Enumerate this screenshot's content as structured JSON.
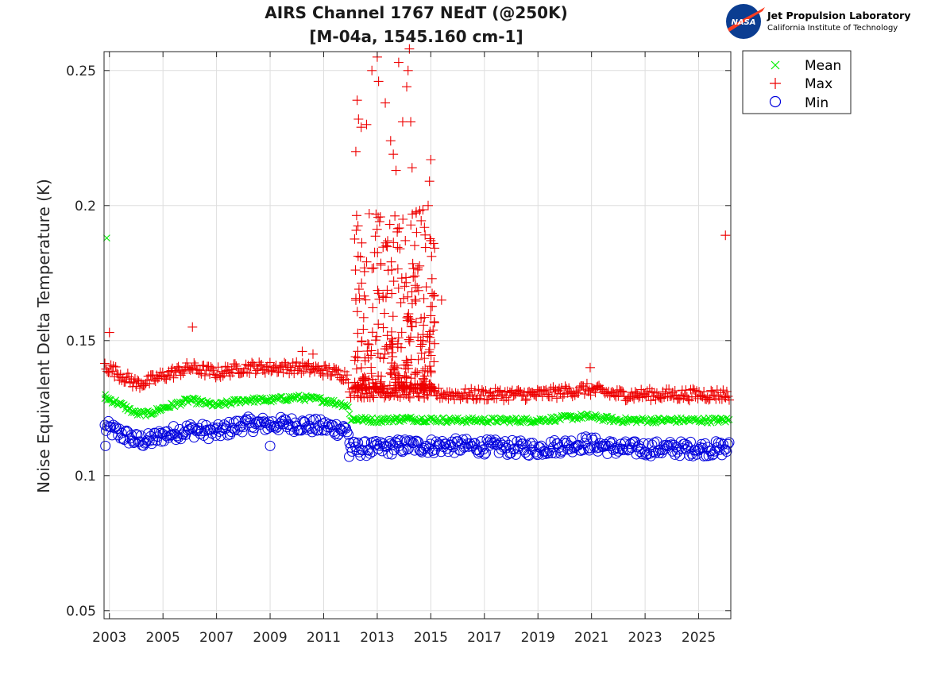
{
  "chart_data": {
    "type": "scatter",
    "title_line1": "AIRS Channel 1767 NEdT (@250K)",
    "title_line2": "[M-04a, 1545.160 cm-1]",
    "xlabel": "",
    "ylabel": "Noise Equivalent Delta Temperature (K)",
    "xlim": [
      2002.8,
      2026.2
    ],
    "ylim": [
      0.047,
      0.257
    ],
    "xticks": [
      "2003",
      "2005",
      "2007",
      "2009",
      "2011",
      "2013",
      "2015",
      "2017",
      "2019",
      "2021",
      "2023",
      "2025"
    ],
    "xtick_values": [
      2003,
      2005,
      2007,
      2009,
      2011,
      2013,
      2015,
      2017,
      2019,
      2021,
      2023,
      2025
    ],
    "yticks": [
      "0.05",
      "0.1",
      "0.15",
      "0.2",
      "0.25"
    ],
    "ytick_values": [
      0.05,
      0.1,
      0.15,
      0.2,
      0.25
    ],
    "grid": true,
    "legend_position": "outside-top-right",
    "series": [
      {
        "name": "Mean",
        "marker": "x",
        "color": "#00ee00",
        "baseline": [
          [
            2002.8,
            0.129
          ],
          [
            2003.3,
            0.127
          ],
          [
            2004.0,
            0.123
          ],
          [
            2004.5,
            0.123
          ],
          [
            2005.0,
            0.125
          ],
          [
            2006.0,
            0.128
          ],
          [
            2007.0,
            0.126
          ],
          [
            2008.0,
            0.128
          ],
          [
            2009.0,
            0.128
          ],
          [
            2010.0,
            0.129
          ],
          [
            2011.0,
            0.128
          ],
          [
            2011.9,
            0.126
          ],
          [
            2012.0,
            0.121
          ],
          [
            2013.0,
            0.1205
          ],
          [
            2014.0,
            0.121
          ],
          [
            2016.0,
            0.1205
          ],
          [
            2019.0,
            0.1205
          ],
          [
            2020.8,
            0.122
          ],
          [
            2022.0,
            0.1205
          ],
          [
            2026.2,
            0.1205
          ]
        ],
        "outliers": [
          [
            2002.9,
            0.188
          ],
          [
            2002.85,
            0.13
          ],
          [
            2025.9,
            0.121
          ]
        ]
      },
      {
        "name": "Max",
        "marker": "+",
        "color": "#ee0000",
        "baseline": [
          [
            2002.8,
            0.141
          ],
          [
            2003.3,
            0.138
          ],
          [
            2004.0,
            0.134
          ],
          [
            2004.5,
            0.135
          ],
          [
            2005.0,
            0.137
          ],
          [
            2006.0,
            0.14
          ],
          [
            2007.0,
            0.138
          ],
          [
            2008.0,
            0.14
          ],
          [
            2009.0,
            0.14
          ],
          [
            2010.0,
            0.14
          ],
          [
            2011.0,
            0.139
          ],
          [
            2011.9,
            0.137
          ],
          [
            2012.0,
            0.131
          ],
          [
            2013.0,
            0.131
          ],
          [
            2014.0,
            0.131
          ],
          [
            2016.0,
            0.13
          ],
          [
            2019.0,
            0.13
          ],
          [
            2020.8,
            0.132
          ],
          [
            2022.0,
            0.13
          ],
          [
            2026.2,
            0.13
          ]
        ],
        "outliers": [
          [
            2003.0,
            0.153
          ],
          [
            2006.1,
            0.155
          ],
          [
            2010.2,
            0.146
          ],
          [
            2010.6,
            0.145
          ],
          [
            2012.2,
            0.22
          ],
          [
            2012.25,
            0.239
          ],
          [
            2012.3,
            0.232
          ],
          [
            2012.4,
            0.229
          ],
          [
            2012.6,
            0.23
          ],
          [
            2012.7,
            0.197
          ],
          [
            2012.8,
            0.25
          ],
          [
            2013.0,
            0.255
          ],
          [
            2013.05,
            0.246
          ],
          [
            2013.3,
            0.238
          ],
          [
            2013.5,
            0.224
          ],
          [
            2013.6,
            0.219
          ],
          [
            2013.7,
            0.213
          ],
          [
            2013.8,
            0.253
          ],
          [
            2013.95,
            0.231
          ],
          [
            2014.1,
            0.244
          ],
          [
            2014.15,
            0.25
          ],
          [
            2014.2,
            0.258
          ],
          [
            2014.25,
            0.231
          ],
          [
            2014.3,
            0.214
          ],
          [
            2014.9,
            0.2
          ],
          [
            2014.95,
            0.209
          ],
          [
            2015.0,
            0.217
          ],
          [
            2015.1,
            0.186
          ],
          [
            2015.4,
            0.165
          ],
          [
            2020.95,
            0.14
          ],
          [
            2026.0,
            0.189
          ]
        ],
        "burst": {
          "x_range": [
            2012.15,
            2015.15
          ],
          "y_range": [
            0.132,
            0.2
          ],
          "count": 340
        }
      },
      {
        "name": "Min",
        "marker": "o",
        "color": "#0000dd",
        "baseline": [
          [
            2002.8,
            0.118
          ],
          [
            2003.3,
            0.116
          ],
          [
            2004.0,
            0.113
          ],
          [
            2004.5,
            0.113
          ],
          [
            2005.0,
            0.115
          ],
          [
            2006.0,
            0.117
          ],
          [
            2007.0,
            0.116
          ],
          [
            2008.0,
            0.119
          ],
          [
            2009.0,
            0.119
          ],
          [
            2010.0,
            0.119
          ],
          [
            2011.0,
            0.118
          ],
          [
            2011.9,
            0.117
          ],
          [
            2012.0,
            0.11
          ],
          [
            2013.0,
            0.11
          ],
          [
            2014.0,
            0.111
          ],
          [
            2016.0,
            0.111
          ],
          [
            2019.0,
            0.11
          ],
          [
            2020.8,
            0.112
          ],
          [
            2022.0,
            0.11
          ],
          [
            2026.2,
            0.11
          ]
        ],
        "outliers": [
          [
            2002.85,
            0.111
          ],
          [
            2009.0,
            0.111
          ],
          [
            2011.95,
            0.107
          ]
        ]
      }
    ]
  },
  "logo": {
    "emblem_text": "NASA",
    "line1": "Jet Propulsion Laboratory",
    "line2": "California Institute of Technology"
  }
}
